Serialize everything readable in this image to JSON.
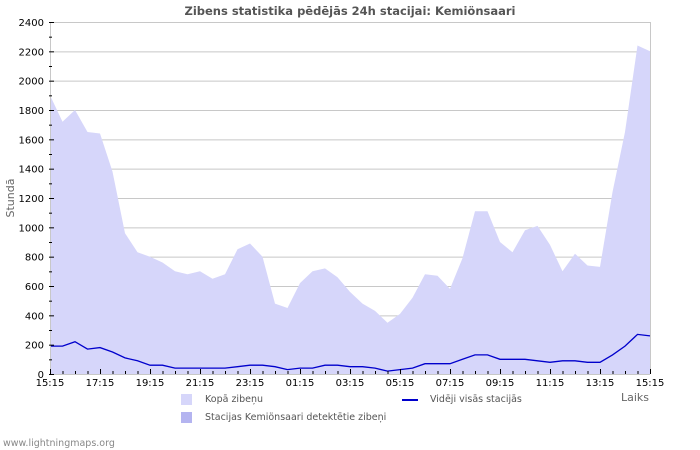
{
  "title": "Zibens statistika pēdējās 24h stacijai: Kemiönsaari",
  "footer": "www.lightningmaps.org",
  "colors": {
    "total_area": "#d6d6fa",
    "station_area": "#b4b4f0",
    "average_line": "#0000cc",
    "grid": "#c8c8c8",
    "axis": "#c8c8c8"
  },
  "legend": {
    "total": "Kopā zibeņu",
    "station": "Stacijas Kemiönsaari detektētie zibeņi",
    "average": "Vidēji visās stacijās"
  },
  "chart_data": {
    "type": "area",
    "title": "Zibens statistika pēdējās 24h stacijai: Kemiönsaari",
    "xlabel": "Laiks",
    "ylabel": "Stundā",
    "ylim": [
      0,
      2400
    ],
    "yticks": [
      0,
      200,
      400,
      600,
      800,
      1000,
      1200,
      1400,
      1600,
      1800,
      2000,
      2200,
      2400
    ],
    "xtick_labels": [
      "15:15",
      "17:15",
      "19:15",
      "21:15",
      "23:15",
      "01:15",
      "03:15",
      "05:15",
      "07:15",
      "09:15",
      "11:15",
      "13:15",
      "15:15"
    ],
    "grid": true,
    "legend_position": "bottom",
    "x": [
      "15:15",
      "15:45",
      "16:15",
      "16:45",
      "17:15",
      "17:45",
      "18:15",
      "18:45",
      "19:15",
      "19:45",
      "20:15",
      "20:45",
      "21:15",
      "21:45",
      "22:15",
      "22:45",
      "23:15",
      "23:45",
      "00:15",
      "00:45",
      "01:15",
      "01:45",
      "02:15",
      "02:45",
      "03:15",
      "03:45",
      "04:15",
      "04:45",
      "05:15",
      "05:45",
      "06:15",
      "06:45",
      "07:15",
      "07:45",
      "08:15",
      "08:45",
      "09:15",
      "09:45",
      "10:15",
      "10:45",
      "11:15",
      "11:45",
      "12:15",
      "12:45",
      "13:15",
      "13:45",
      "14:15",
      "14:45",
      "15:15"
    ],
    "series": [
      {
        "name": "Kopā zibeņu",
        "kind": "area",
        "values": [
          1900,
          1720,
          1800,
          1650,
          1640,
          1380,
          960,
          830,
          800,
          760,
          700,
          680,
          700,
          650,
          680,
          850,
          890,
          800,
          480,
          450,
          620,
          700,
          720,
          660,
          560,
          480,
          430,
          350,
          410,
          520,
          680,
          670,
          580,
          790,
          1110,
          1110,
          900,
          830,
          980,
          1010,
          880,
          700,
          820,
          740,
          730,
          1240,
          1650,
          2240,
          2200
        ]
      },
      {
        "name": "Stacijas Kemiönsaari detektētie zibeņi",
        "kind": "area",
        "values": []
      },
      {
        "name": "Vidēji visās stacijās",
        "kind": "line",
        "values": [
          190,
          190,
          220,
          170,
          180,
          150,
          110,
          90,
          60,
          60,
          40,
          40,
          40,
          40,
          40,
          50,
          60,
          60,
          50,
          30,
          40,
          40,
          60,
          60,
          50,
          50,
          40,
          20,
          30,
          40,
          70,
          70,
          70,
          100,
          130,
          130,
          100,
          100,
          100,
          90,
          80,
          90,
          90,
          80,
          80,
          130,
          190,
          270,
          260
        ]
      }
    ]
  }
}
